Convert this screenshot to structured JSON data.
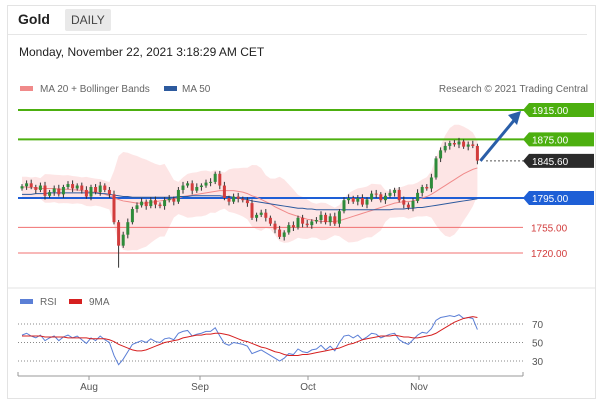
{
  "header": {
    "instrument": "Gold",
    "timeframe": "DAILY"
  },
  "timestamp": "Monday, November 22, 2021 3:18:29 AM CET",
  "legend": [
    {
      "label": "MA 20 + Bollinger Bands",
      "color": "#f08a8a"
    },
    {
      "label": "MA 50",
      "color": "#2d5a9e"
    }
  ],
  "credit": "Research © 2021 Trading Central",
  "rsi_legend": [
    {
      "label": "RSI",
      "color": "#5b7fd6"
    },
    {
      "label": "9MA",
      "color": "#d62020"
    }
  ],
  "colors": {
    "resistance": "#4caf0f",
    "pivot": "#1e5fd6",
    "support": "#f07070",
    "current": "#2b2b2b",
    "bull": "#2e8b3a",
    "bear": "#d23c3c",
    "arrow": "#2a5ea8",
    "band": "#fde0e0"
  },
  "chart_data": {
    "type": "candlestick",
    "x_ticks": [
      "Aug",
      "Sep",
      "Oct",
      "Nov"
    ],
    "ylim": [
      1680,
      1935
    ],
    "levels": [
      {
        "value": 1915,
        "label": "1915.00",
        "kind": "resistance"
      },
      {
        "value": 1875,
        "label": "1875.00",
        "kind": "resistance"
      },
      {
        "value": 1845.6,
        "label": "1845.60",
        "kind": "current"
      },
      {
        "value": 1795,
        "label": "1795.00",
        "kind": "pivot"
      },
      {
        "value": 1755,
        "label": "1755.00",
        "kind": "support"
      },
      {
        "value": 1720,
        "label": "1720.00",
        "kind": "support"
      }
    ],
    "closes": [
      1811,
      1815,
      1810,
      1806,
      1812,
      1798,
      1803,
      1808,
      1800,
      1810,
      1814,
      1808,
      1812,
      1806,
      1797,
      1810,
      1803,
      1812,
      1806,
      1800,
      1762,
      1730,
      1745,
      1762,
      1780,
      1785,
      1790,
      1784,
      1792,
      1786,
      1784,
      1792,
      1794,
      1790,
      1806,
      1812,
      1815,
      1805,
      1810,
      1812,
      1816,
      1817,
      1828,
      1812,
      1795,
      1790,
      1797,
      1794,
      1792,
      1788,
      1768,
      1772,
      1775,
      1768,
      1760,
      1752,
      1742,
      1748,
      1758,
      1755,
      1768,
      1760,
      1758,
      1763,
      1765,
      1772,
      1762,
      1770,
      1760,
      1777,
      1792,
      1795,
      1790,
      1795,
      1786,
      1793,
      1801,
      1800,
      1792,
      1798,
      1802,
      1806,
      1792,
      1786,
      1782,
      1791,
      1802,
      1810,
      1808,
      1823,
      1849,
      1860,
      1866,
      1870,
      1868,
      1872,
      1865,
      1868,
      1866,
      1846
    ],
    "ma20": [
      1810,
      1810,
      1809,
      1809,
      1808,
      1808,
      1808,
      1808,
      1807,
      1807,
      1807,
      1806,
      1806,
      1805,
      1804,
      1803,
      1803,
      1802,
      1800,
      1798,
      1795,
      1793,
      1791,
      1790,
      1789,
      1788,
      1788,
      1788,
      1789,
      1790,
      1791,
      1792,
      1793,
      1794,
      1795,
      1797,
      1798,
      1799,
      1800,
      1801,
      1802,
      1803,
      1804,
      1805,
      1805,
      1805,
      1805,
      1804,
      1803,
      1801,
      1798,
      1796,
      1793,
      1790,
      1787,
      1783,
      1780,
      1777,
      1774,
      1772,
      1770,
      1768,
      1766,
      1765,
      1764,
      1763,
      1763,
      1763,
      1763,
      1764,
      1766,
      1768,
      1770,
      1772,
      1774,
      1776,
      1778,
      1780,
      1782,
      1784,
      1786,
      1788,
      1789,
      1790,
      1790,
      1791,
      1793,
      1795,
      1797,
      1800,
      1804,
      1808,
      1812,
      1816,
      1820,
      1824,
      1828,
      1831,
      1834,
      1836
    ],
    "ma50": [
      1800,
      1800,
      1800,
      1801,
      1801,
      1801,
      1802,
      1802,
      1802,
      1802,
      1802,
      1802,
      1802,
      1802,
      1802,
      1802,
      1802,
      1801,
      1801,
      1800,
      1799,
      1798,
      1797,
      1797,
      1796,
      1796,
      1796,
      1796,
      1796,
      1796,
      1796,
      1796,
      1796,
      1796,
      1797,
      1797,
      1797,
      1798,
      1798,
      1798,
      1798,
      1798,
      1798,
      1798,
      1797,
      1797,
      1796,
      1795,
      1794,
      1793,
      1791,
      1790,
      1789,
      1788,
      1787,
      1786,
      1785,
      1784,
      1783,
      1782,
      1781,
      1781,
      1780,
      1780,
      1779,
      1779,
      1779,
      1779,
      1779,
      1779,
      1779,
      1779,
      1779,
      1779,
      1779,
      1779,
      1779,
      1779,
      1779,
      1779,
      1779,
      1780,
      1780,
      1780,
      1781,
      1781,
      1782,
      1782,
      1783,
      1784,
      1785,
      1786,
      1787,
      1788,
      1789,
      1790,
      1791,
      1792,
      1793,
      1794
    ],
    "rsi": [
      58,
      60,
      57,
      55,
      58,
      52,
      55,
      57,
      52,
      56,
      58,
      55,
      57,
      53,
      49,
      55,
      52,
      57,
      53,
      50,
      36,
      26,
      32,
      40,
      48,
      50,
      52,
      50,
      54,
      51,
      50,
      54,
      55,
      53,
      60,
      62,
      63,
      57,
      59,
      60,
      62,
      62,
      66,
      57,
      49,
      47,
      50,
      49,
      48,
      46,
      38,
      40,
      42,
      39,
      36,
      33,
      30,
      33,
      38,
      37,
      43,
      40,
      39,
      42,
      43,
      47,
      42,
      46,
      41,
      50,
      57,
      58,
      55,
      58,
      53,
      56,
      60,
      59,
      55,
      57,
      59,
      60,
      53,
      50,
      48,
      53,
      58,
      61,
      60,
      65,
      74,
      77,
      78,
      79,
      78,
      80,
      76,
      77,
      76,
      64
    ],
    "rsi9": [
      57,
      57,
      57,
      57,
      57,
      56,
      56,
      56,
      56,
      56,
      55,
      55,
      55,
      55,
      55,
      54,
      54,
      54,
      54,
      53,
      51,
      48,
      46,
      44,
      42,
      41,
      41,
      42,
      44,
      46,
      48,
      50,
      51,
      52,
      53,
      55,
      56,
      57,
      58,
      58,
      59,
      59,
      60,
      60,
      59,
      58,
      56,
      54,
      52,
      51,
      49,
      47,
      45,
      44,
      42,
      40,
      39,
      37,
      36,
      36,
      36,
      37,
      37,
      38,
      39,
      40,
      41,
      42,
      43,
      44,
      46,
      48,
      49,
      51,
      53,
      54,
      55,
      56,
      57,
      57,
      57,
      58,
      57,
      56,
      56,
      55,
      55,
      56,
      57,
      58,
      60,
      63,
      66,
      69,
      72,
      74,
      76,
      77,
      78,
      77
    ],
    "rsi_levels": [
      70,
      50,
      30
    ],
    "projection": {
      "from": 1845.6,
      "to": 1915
    }
  }
}
